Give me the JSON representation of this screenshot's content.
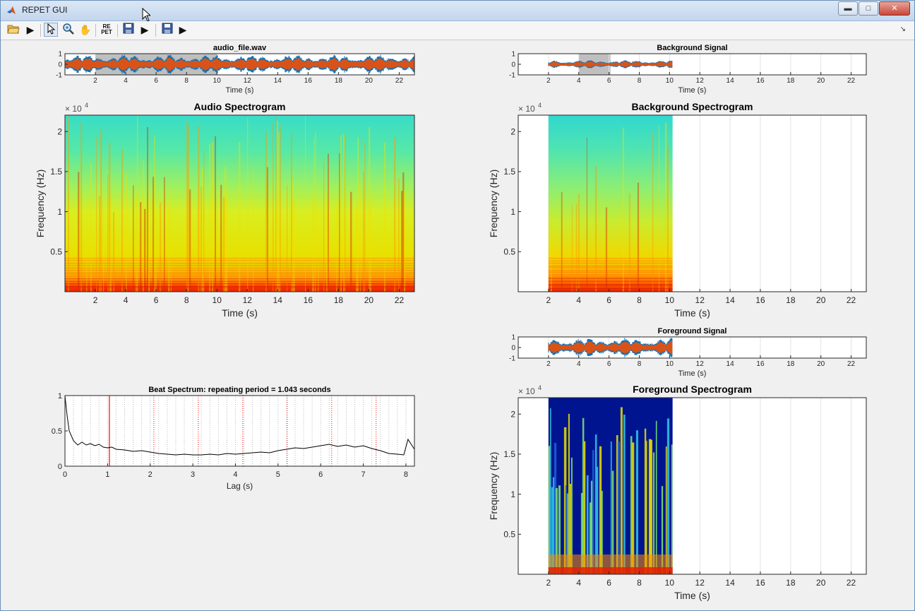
{
  "window": {
    "title": "REPET GUI"
  },
  "toolbar": {
    "open_icon": "folder-open-icon",
    "play_icon": "play-icon",
    "select_icon": "arrow-cursor-icon",
    "zoom_icon": "zoom-icon",
    "pan_icon": "hand-pan-icon",
    "repet_label_top": "RE",
    "repet_label_bottom": "PET",
    "save_icon": "floppy-disk-icon"
  },
  "colors": {
    "signal_orange": "#d95319",
    "signal_blue": "#0072bd",
    "selection_gray": "#bfbfbf",
    "red_marker": "#ff0000"
  },
  "panels": {
    "audio_signal": {
      "title": "audio_file.wav",
      "xlabel": "Time (s)",
      "yticks": [
        "1",
        "0",
        "-1"
      ],
      "xticks": [
        "2",
        "4",
        "6",
        "8",
        "10",
        "12",
        "14",
        "16",
        "18",
        "20",
        "22"
      ]
    },
    "audio_spectrogram": {
      "title": "Audio Spectrogram",
      "xlabel": "Time (s)",
      "ylabel": "Frequency (Hz)",
      "exponent": "× 10",
      "exponent_power": "4",
      "yticks": [
        "2",
        "1.5",
        "1",
        "0.5"
      ],
      "xticks": [
        "2",
        "4",
        "6",
        "8",
        "10",
        "12",
        "14",
        "16",
        "18",
        "20",
        "22"
      ]
    },
    "beat_spectrum": {
      "title": "Beat Spectrum: repeating period = 1.043 seconds",
      "xlabel": "Lag (s)",
      "yticks": [
        "1",
        "0.5",
        "0"
      ],
      "xticks": [
        "0",
        "1",
        "2",
        "3",
        "4",
        "5",
        "6",
        "7",
        "8"
      ]
    },
    "background_signal": {
      "title": "Background Signal",
      "xlabel": "Time (s)",
      "yticks": [
        "1",
        "0",
        "-1"
      ],
      "xticks": [
        "2",
        "4",
        "6",
        "8",
        "10",
        "12",
        "14",
        "16",
        "18",
        "20",
        "22"
      ]
    },
    "background_spectrogram": {
      "title": "Background Spectrogram",
      "xlabel": "Time (s)",
      "ylabel": "Frequency (Hz)",
      "exponent": "× 10",
      "exponent_power": "4",
      "yticks": [
        "2",
        "1.5",
        "1",
        "0.5"
      ],
      "xticks": [
        "2",
        "4",
        "6",
        "8",
        "10",
        "12",
        "14",
        "16",
        "18",
        "20",
        "22"
      ]
    },
    "foreground_signal": {
      "title": "Foreground Signal",
      "xlabel": "Time (s)",
      "yticks": [
        "1",
        "0",
        "-1"
      ],
      "xticks": [
        "2",
        "4",
        "6",
        "8",
        "10",
        "12",
        "14",
        "16",
        "18",
        "20",
        "22"
      ]
    },
    "foreground_spectrogram": {
      "title": "Foreground Spectrogram",
      "xlabel": "Time (s)",
      "ylabel": "Frequency (Hz)",
      "exponent": "× 10",
      "exponent_power": "4",
      "yticks": [
        "2",
        "1.5",
        "1",
        "0.5"
      ],
      "xticks": [
        "2",
        "4",
        "6",
        "8",
        "10",
        "12",
        "14",
        "16",
        "18",
        "20",
        "22"
      ]
    }
  },
  "chart_data": [
    {
      "type": "line",
      "name": "audio_signal",
      "title": "audio_file.wav",
      "xlabel": "Time (s)",
      "xlim": [
        0,
        23
      ],
      "ylim": [
        -1,
        1
      ],
      "selection": [
        2,
        10
      ]
    },
    {
      "type": "heatmap",
      "name": "audio_spectrogram",
      "title": "Audio Spectrogram",
      "xlabel": "Time (s)",
      "ylabel": "Frequency (Hz)",
      "xlim": [
        0,
        23
      ],
      "ylim": [
        0,
        22050
      ]
    },
    {
      "type": "line",
      "name": "beat_spectrum",
      "title": "Beat Spectrum: repeating period = 1.043 seconds",
      "xlabel": "Lag (s)",
      "xlim": [
        0,
        8.2
      ],
      "ylim": [
        0,
        1
      ],
      "repeating_period": 1.043,
      "period_multiples": [
        2.086,
        3.129,
        4.172,
        5.215,
        6.258,
        7.301
      ],
      "x": [
        0,
        0.05,
        0.1,
        0.2,
        0.3,
        0.4,
        0.5,
        0.6,
        0.7,
        0.8,
        0.9,
        1.0,
        1.1,
        1.2,
        1.4,
        1.6,
        1.8,
        2.0,
        2.2,
        2.4,
        2.6,
        2.8,
        3.0,
        3.2,
        3.4,
        3.6,
        3.8,
        4.0,
        4.2,
        4.4,
        4.6,
        4.8,
        5.0,
        5.2,
        5.4,
        5.6,
        5.8,
        6.0,
        6.2,
        6.4,
        6.6,
        6.8,
        7.0,
        7.2,
        7.4,
        7.6,
        7.8,
        7.95,
        8.05,
        8.2
      ],
      "y": [
        1.0,
        0.72,
        0.5,
        0.36,
        0.3,
        0.34,
        0.3,
        0.32,
        0.29,
        0.31,
        0.27,
        0.26,
        0.27,
        0.24,
        0.23,
        0.21,
        0.22,
        0.2,
        0.18,
        0.17,
        0.16,
        0.17,
        0.16,
        0.16,
        0.17,
        0.16,
        0.18,
        0.17,
        0.18,
        0.19,
        0.2,
        0.19,
        0.22,
        0.24,
        0.26,
        0.25,
        0.27,
        0.29,
        0.31,
        0.28,
        0.3,
        0.27,
        0.29,
        0.25,
        0.22,
        0.18,
        0.17,
        0.16,
        0.38,
        0.24
      ]
    },
    {
      "type": "line",
      "name": "background_signal",
      "title": "Background Signal",
      "xlabel": "Time (s)",
      "xlim": [
        0,
        23
      ],
      "ylim": [
        -1,
        1
      ],
      "data_extent": [
        2,
        10.2
      ],
      "selection": [
        4,
        6.1
      ]
    },
    {
      "type": "heatmap",
      "name": "background_spectrogram",
      "title": "Background Spectrogram",
      "xlabel": "Time (s)",
      "ylabel": "Frequency (Hz)",
      "xlim": [
        0,
        23
      ],
      "ylim": [
        0,
        22050
      ],
      "data_extent": [
        2,
        10.2
      ]
    },
    {
      "type": "line",
      "name": "foreground_signal",
      "title": "Foreground Signal",
      "xlabel": "Time (s)",
      "xlim": [
        0,
        23
      ],
      "ylim": [
        -1,
        1
      ],
      "data_extent": [
        2,
        10.2
      ]
    },
    {
      "type": "heatmap",
      "name": "foreground_spectrogram",
      "title": "Foreground Spectrogram",
      "xlabel": "Time (s)",
      "ylabel": "Frequency (Hz)",
      "xlim": [
        0,
        23
      ],
      "ylim": [
        0,
        22050
      ],
      "data_extent": [
        2,
        10.2
      ]
    }
  ]
}
